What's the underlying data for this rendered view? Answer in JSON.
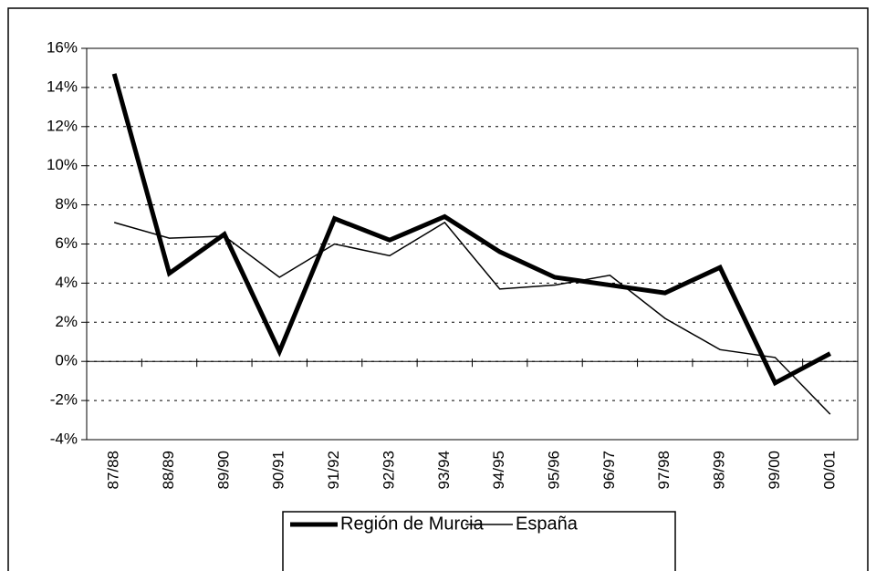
{
  "chart_data": {
    "type": "line",
    "categories": [
      "87/88",
      "88/89",
      "89/90",
      "90/91",
      "91/92",
      "92/93",
      "93/94",
      "94/95",
      "95/96",
      "96/97",
      "97/98",
      "98/99",
      "99/00",
      "00/01"
    ],
    "series": [
      {
        "name": "Región de Murcia",
        "color": "#000000",
        "values": [
          14.7,
          4.5,
          6.5,
          0.5,
          7.3,
          6.2,
          7.4,
          5.6,
          4.3,
          3.9,
          3.5,
          4.8,
          -1.1,
          0.4
        ]
      },
      {
        "name": "España",
        "color": "#000000",
        "values": [
          7.1,
          6.3,
          6.4,
          4.3,
          6.0,
          5.4,
          7.1,
          3.7,
          3.9,
          4.4,
          2.2,
          0.6,
          0.2,
          -2.7
        ]
      }
    ],
    "ylim": [
      -4,
      16
    ],
    "yticks": [
      {
        "value": -4,
        "label": "-4%"
      },
      {
        "value": -2,
        "label": "-2%"
      },
      {
        "value": 0,
        "label": "0%"
      },
      {
        "value": 2,
        "label": "2%"
      },
      {
        "value": 4,
        "label": "4%"
      },
      {
        "value": 6,
        "label": "6%"
      },
      {
        "value": 8,
        "label": "8%"
      },
      {
        "value": 10,
        "label": "10%"
      },
      {
        "value": 12,
        "label": "12%"
      },
      {
        "value": 14,
        "label": "14%"
      },
      {
        "value": 16,
        "label": "16%"
      }
    ],
    "grid": true
  }
}
